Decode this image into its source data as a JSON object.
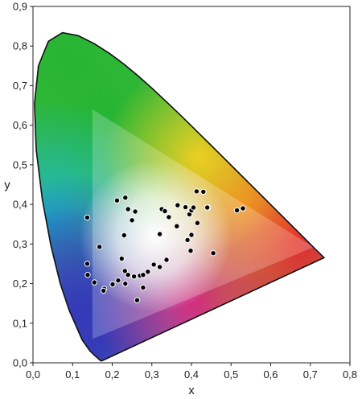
{
  "chart_data": {
    "type": "scatter",
    "title": "",
    "xlabel": "x",
    "ylabel": "y",
    "xlim": [
      0,
      0.8
    ],
    "ylim": [
      0,
      0.9
    ],
    "x_ticks": [
      0,
      0.1,
      0.2,
      0.3,
      0.4,
      0.5,
      0.6,
      0.7,
      0.8
    ],
    "y_ticks": [
      0,
      0.1,
      0.2,
      0.3,
      0.4,
      0.5,
      0.6,
      0.7,
      0.8,
      0.9
    ],
    "x_tick_labels": [
      "0,0",
      "0,1",
      "0,2",
      "0,3",
      "0,4",
      "0,5",
      "0,6",
      "0,7",
      "0,8"
    ],
    "y_tick_labels": [
      "0,0",
      "0,1",
      "0,2",
      "0,3",
      "0,4",
      "0,5",
      "0,6",
      "0,7",
      "0,8",
      "0,9"
    ],
    "grid": false,
    "background": "CIE 1931 chromaticity diagram (spectral locus) with color gamut triangle",
    "gamut_triangle": [
      [
        0.15,
        0.06
      ],
      [
        0.708,
        0.292
      ],
      [
        0.15,
        0.64
      ]
    ],
    "spectral_locus": [
      [
        0.1741,
        0.005
      ],
      [
        0.1738,
        0.0049
      ],
      [
        0.1736,
        0.0049
      ],
      [
        0.173,
        0.0048
      ],
      [
        0.1714,
        0.0051
      ],
      [
        0.1689,
        0.0069
      ],
      [
        0.1644,
        0.0109
      ],
      [
        0.1566,
        0.0177
      ],
      [
        0.144,
        0.0297
      ],
      [
        0.1241,
        0.0578
      ],
      [
        0.0913,
        0.1327
      ],
      [
        0.0687,
        0.2007
      ],
      [
        0.0454,
        0.295
      ],
      [
        0.0235,
        0.4127
      ],
      [
        0.0082,
        0.5384
      ],
      [
        0.0039,
        0.6548
      ],
      [
        0.0139,
        0.7502
      ],
      [
        0.0389,
        0.812
      ],
      [
        0.0743,
        0.8338
      ],
      [
        0.1142,
        0.8262
      ],
      [
        0.1547,
        0.8059
      ],
      [
        0.1929,
        0.7816
      ],
      [
        0.2296,
        0.7543
      ],
      [
        0.2658,
        0.7243
      ],
      [
        0.3016,
        0.6923
      ],
      [
        0.3373,
        0.6589
      ],
      [
        0.3731,
        0.6245
      ],
      [
        0.4087,
        0.5896
      ],
      [
        0.4441,
        0.5547
      ],
      [
        0.4788,
        0.5202
      ],
      [
        0.5125,
        0.4866
      ],
      [
        0.5448,
        0.4544
      ],
      [
        0.5752,
        0.4242
      ],
      [
        0.6029,
        0.3965
      ],
      [
        0.627,
        0.3725
      ],
      [
        0.6482,
        0.3514
      ],
      [
        0.6658,
        0.334
      ],
      [
        0.6801,
        0.3197
      ],
      [
        0.6915,
        0.3083
      ],
      [
        0.7006,
        0.2993
      ],
      [
        0.7079,
        0.292
      ],
      [
        0.714,
        0.2859
      ],
      [
        0.719,
        0.2809
      ],
      [
        0.723,
        0.277
      ],
      [
        0.726,
        0.274
      ],
      [
        0.7347,
        0.2653
      ]
    ],
    "series": [
      {
        "x": [
          0.137,
          0.212,
          0.233,
          0.24,
          0.258,
          0.23,
          0.25,
          0.168,
          0.224,
          0.137,
          0.138,
          0.155,
          0.18,
          0.178,
          0.201,
          0.215,
          0.233,
          0.24,
          0.232,
          0.255,
          0.27,
          0.278,
          0.29,
          0.278,
          0.263,
          0.305,
          0.32,
          0.337,
          0.325,
          0.333,
          0.343,
          0.365,
          0.363,
          0.385,
          0.395,
          0.4,
          0.413,
          0.405,
          0.43,
          0.415,
          0.442,
          0.4,
          0.39,
          0.398,
          0.44,
          0.455,
          0.515,
          0.53,
          0.32
        ],
        "y": [
          0.367,
          0.41,
          0.417,
          0.388,
          0.382,
          0.322,
          0.36,
          0.293,
          0.263,
          0.25,
          0.222,
          0.203,
          0.187,
          0.182,
          0.198,
          0.208,
          0.2,
          0.222,
          0.232,
          0.218,
          0.22,
          0.222,
          0.23,
          0.19,
          0.158,
          0.248,
          0.242,
          0.26,
          0.388,
          0.383,
          0.368,
          0.398,
          0.345,
          0.393,
          0.375,
          0.385,
          0.433,
          0.392,
          0.432,
          0.353,
          0.392,
          0.323,
          0.31,
          0.283,
          0.392,
          0.277,
          0.385,
          0.39,
          0.325
        ]
      }
    ],
    "colors": {
      "axis": "#222222",
      "point_fill": "#000000",
      "point_stroke": "#ffffff",
      "locus_stroke": "#111111",
      "triangle_fill": "#ffffff"
    }
  }
}
